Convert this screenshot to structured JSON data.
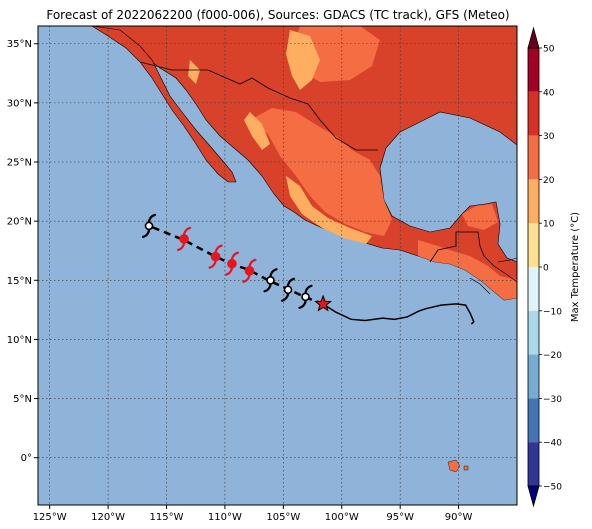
{
  "title": "Forecast of 2022062200 (f000-006), Sources: GDACS (TC track), GFS (Meteo)",
  "map": {
    "lon_range": [
      -126,
      -85
    ],
    "lat_range": [
      -4,
      36.5
    ],
    "lon_ticks": [
      {
        "value": -125,
        "label": "125°W"
      },
      {
        "value": -120,
        "label": "120°W"
      },
      {
        "value": -115,
        "label": "115°W"
      },
      {
        "value": -110,
        "label": "110°W"
      },
      {
        "value": -105,
        "label": "105°W"
      },
      {
        "value": -100,
        "label": "100°W"
      },
      {
        "value": -95,
        "label": "95°W"
      },
      {
        "value": -90,
        "label": "90°W"
      }
    ],
    "lat_ticks": [
      {
        "value": 35,
        "label": "35°N"
      },
      {
        "value": 30,
        "label": "30°N"
      },
      {
        "value": 25,
        "label": "25°N"
      },
      {
        "value": 20,
        "label": "20°N"
      },
      {
        "value": 15,
        "label": "15°N"
      },
      {
        "value": 10,
        "label": "10°N"
      },
      {
        "value": 5,
        "label": "5°N"
      },
      {
        "value": 0,
        "label": "0°"
      }
    ],
    "ocean_color": "#8fb3d9",
    "land_hot_color": "#d8412a",
    "land_warm_color": "#f46d43",
    "land_mild_color": "#fdae61"
  },
  "observed_track": [
    [
      -101.6,
      13.0
    ],
    [
      -100.5,
      12.3
    ],
    [
      -99.2,
      11.7
    ],
    [
      -98.0,
      11.6
    ],
    [
      -96.5,
      11.8
    ],
    [
      -95.5,
      11.7
    ],
    [
      -94.4,
      11.9
    ],
    [
      -93.4,
      12.4
    ],
    [
      -92.8,
      12.6
    ],
    [
      -91.5,
      12.9
    ],
    [
      -90.2,
      13.0
    ],
    [
      -89.4,
      12.9
    ],
    [
      -89.0,
      12.2
    ],
    [
      -88.7,
      11.5
    ],
    [
      -88.9,
      11.3
    ]
  ],
  "forecast_track": [
    [
      -101.6,
      13.0
    ],
    [
      -103.2,
      13.6
    ],
    [
      -104.7,
      14.3
    ],
    [
      -106.3,
      15.0
    ],
    [
      -108.0,
      15.9
    ],
    [
      -109.5,
      16.4
    ],
    [
      -111.0,
      17.1
    ],
    [
      -113.5,
      18.4
    ],
    [
      -116.5,
      19.6
    ]
  ],
  "storm_symbols": [
    {
      "lon": -103.1,
      "lat": 13.6,
      "intensity": "depression",
      "color": "#000000"
    },
    {
      "lon": -104.6,
      "lat": 14.2,
      "intensity": "depression",
      "color": "#000000"
    },
    {
      "lon": -106.1,
      "lat": 15.0,
      "intensity": "depression",
      "color": "#000000"
    },
    {
      "lon": -107.9,
      "lat": 15.8,
      "intensity": "storm",
      "color": "#e8141e"
    },
    {
      "lon": -109.4,
      "lat": 16.4,
      "intensity": "storm",
      "color": "#e8141e"
    },
    {
      "lon": -110.8,
      "lat": 17.0,
      "intensity": "storm",
      "color": "#e8141e"
    },
    {
      "lon": -113.5,
      "lat": 18.5,
      "intensity": "storm",
      "color": "#e8141e"
    },
    {
      "lon": -116.5,
      "lat": 19.6,
      "intensity": "depression",
      "color": "#000000"
    }
  ],
  "current_position": {
    "lon": -101.6,
    "lat": 13.0,
    "color": "#e8141e"
  },
  "colorbar": {
    "label": "Max Temperature (°C)",
    "ticks": [
      50,
      40,
      30,
      20,
      10,
      0,
      -10,
      -20,
      -30,
      -40,
      -50
    ],
    "bands": [
      {
        "from": 40,
        "to": 50,
        "color": "#a50026"
      },
      {
        "from": 30,
        "to": 40,
        "color": "#d73027"
      },
      {
        "from": 20,
        "to": 30,
        "color": "#f46d43"
      },
      {
        "from": 10,
        "to": 20,
        "color": "#fdae61"
      },
      {
        "from": 0,
        "to": 10,
        "color": "#fee090"
      },
      {
        "from": -10,
        "to": 0,
        "color": "#e0f3f8"
      },
      {
        "from": -20,
        "to": -10,
        "color": "#abd9e9"
      },
      {
        "from": -30,
        "to": -20,
        "color": "#74add1"
      },
      {
        "from": -40,
        "to": -30,
        "color": "#4575b4"
      },
      {
        "from": -50,
        "to": -40,
        "color": "#313695"
      }
    ],
    "over_color": "#67001f",
    "under_color": "#000080"
  }
}
